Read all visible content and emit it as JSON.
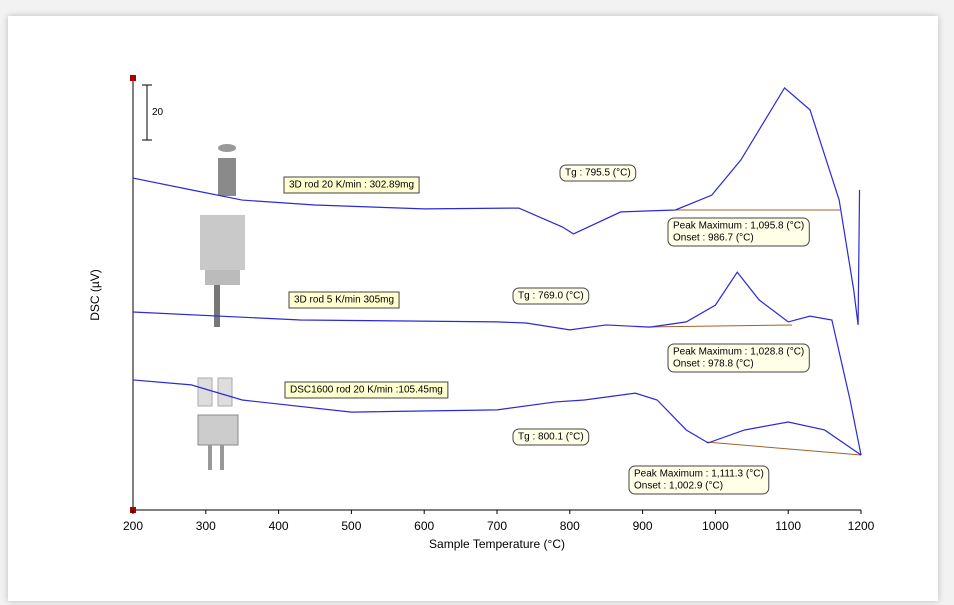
{
  "chart_data": {
    "type": "line",
    "x_label": "Sample Temperature (°C)",
    "y_label": "DSC (µV)",
    "xlim": [
      200,
      1200
    ],
    "xticks": [
      200,
      300,
      400,
      500,
      600,
      700,
      800,
      900,
      1000,
      1100,
      1200
    ],
    "ylim": [
      0,
      156
    ],
    "scale_bar": 20,
    "series": [
      {
        "name": "3D rod 20 K/min : 302.89mg",
        "color": "#2a2ad8",
        "x": [
          200,
          280,
          350,
          450,
          600,
          730,
          790,
          805,
          870,
          945,
          995,
          1035,
          1095,
          1130,
          1170,
          1190,
          1196,
          1198
        ],
        "values": [
          120.7,
          116.4,
          112.7,
          110.9,
          109.5,
          109.8,
          102.9,
          100.4,
          108.4,
          109.1,
          114.5,
          127.3,
          153.5,
          145.5,
          112.7,
          80,
          67.3,
          116.4
        ]
      },
      {
        "name": "3D rod 5 K/min  305mg",
        "color": "#2a2ad8",
        "x": [
          200,
          430,
          700,
          740,
          800,
          850,
          910,
          960,
          1000,
          1030,
          1060,
          1100,
          1130,
          1160,
          1185,
          1200
        ],
        "values": [
          72,
          69.1,
          68.4,
          68,
          65.5,
          67.3,
          66.5,
          68.4,
          74.5,
          86.5,
          76.4,
          68.4,
          70.5,
          69.1,
          40,
          20
        ]
      },
      {
        "name": "DSC1600  rod 20 K/min :105.45mg",
        "color": "#2a2ad8",
        "x": [
          200,
          280,
          350,
          500,
          700,
          780,
          820,
          890,
          920,
          960,
          990,
          1040,
          1100,
          1150,
          1200
        ],
        "values": [
          47.3,
          45.5,
          40,
          35.6,
          36.4,
          39.3,
          40,
          42.5,
          40,
          29.1,
          24.4,
          29.1,
          32,
          29.1,
          20
        ]
      }
    ],
    "annotations": [
      [
        "Tg :  795.5 (°C)"
      ],
      [
        "Peak Maximum :  1,095.8 (°C)",
        "Onset :  986.7 (°C)"
      ],
      [
        "Tg :  769.0 (°C)"
      ],
      [
        "Peak Maximum :  1,028.8 (°C)",
        "Onset :  978.8 (°C)"
      ],
      [
        "Tg :  800.1 (°C)"
      ],
      [
        "Peak Maximum :  1,111.3 (°C)",
        "Onset :  1,002.9 (°C)"
      ]
    ]
  }
}
